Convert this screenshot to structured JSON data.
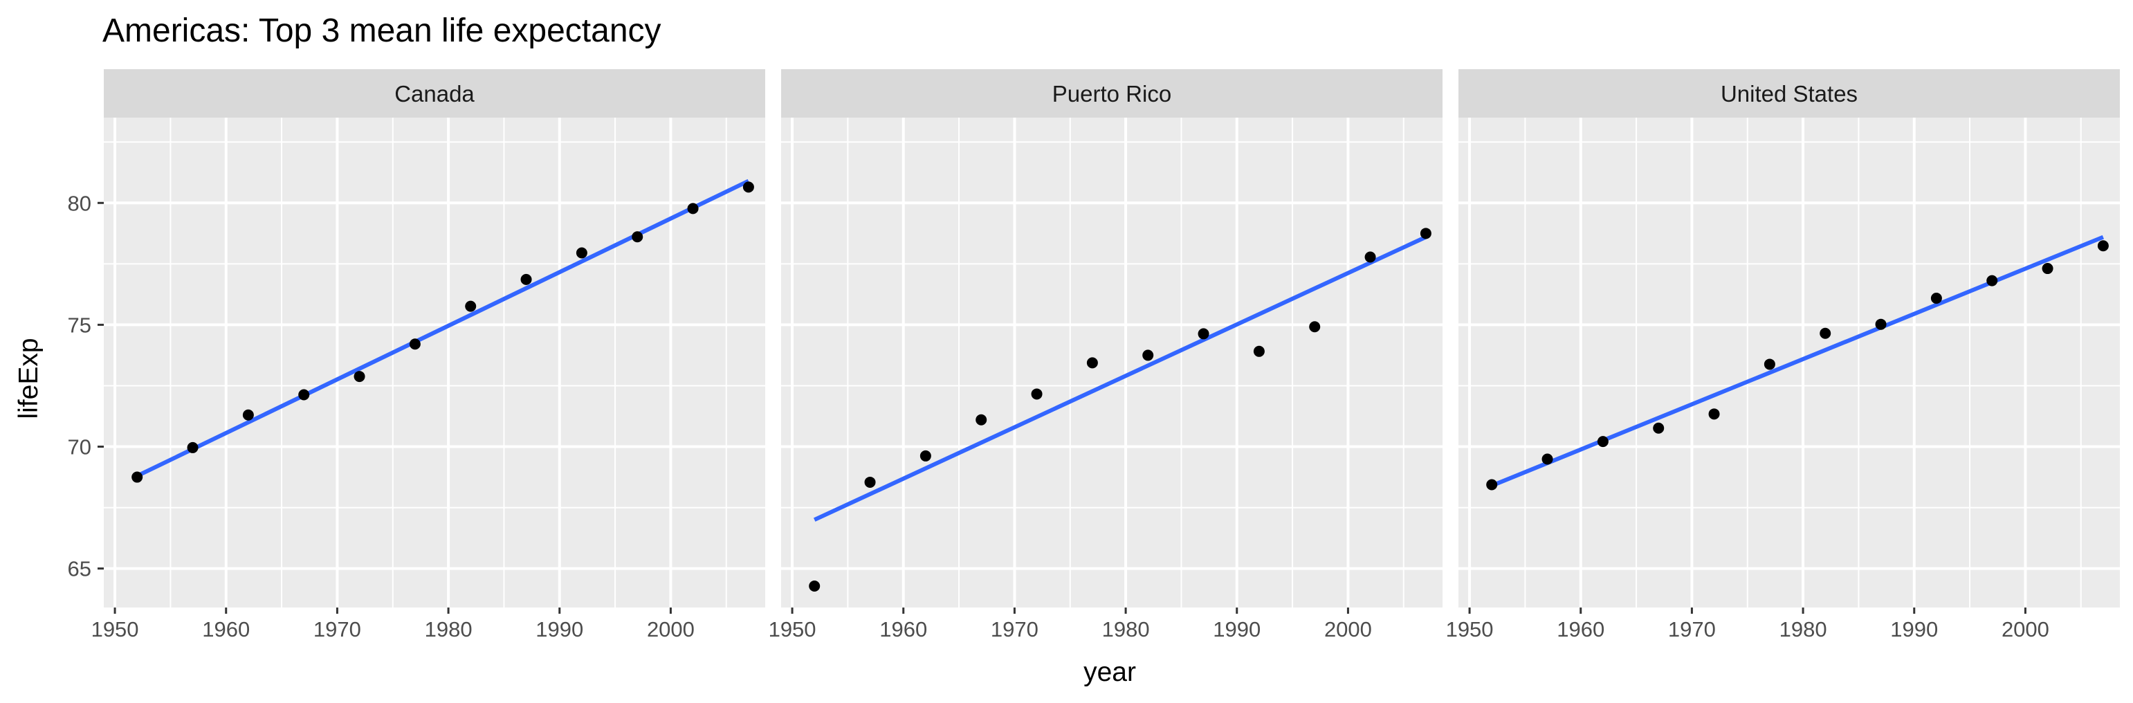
{
  "chart_data": {
    "type": "scatter",
    "title": "Americas: Top 3 mean life expectancy",
    "xlabel": "year",
    "ylabel": "lifeExp",
    "xlim": [
      1949,
      2008.5
    ],
    "ylim": [
      63.4,
      83.5
    ],
    "x_ticks": [
      1950,
      1960,
      1970,
      1980,
      1990,
      2000
    ],
    "y_ticks": [
      65,
      70,
      75,
      80
    ],
    "grid": true,
    "colors": {
      "panel_bg": "#ebebeb",
      "strip_bg": "#d9d9d9",
      "grid": "#ffffff",
      "points": "#000000",
      "fit_line": "#3366ff"
    },
    "x": [
      1952,
      1957,
      1962,
      1967,
      1972,
      1977,
      1982,
      1987,
      1992,
      1997,
      2002,
      2007
    ],
    "facets": [
      {
        "name": "Canada",
        "values": [
          68.75,
          69.96,
          71.3,
          72.13,
          72.88,
          74.21,
          75.76,
          76.86,
          77.95,
          78.61,
          79.77,
          80.65
        ],
        "fit": [
          [
            1952,
            68.8
          ],
          [
            2007,
            80.9
          ]
        ]
      },
      {
        "name": "Puerto Rico",
        "values": [
          64.28,
          68.54,
          69.62,
          71.1,
          72.16,
          73.44,
          73.75,
          74.63,
          73.91,
          74.92,
          77.78,
          78.75
        ],
        "fit": [
          [
            1952,
            67.0
          ],
          [
            2007,
            78.6
          ]
        ]
      },
      {
        "name": "United States",
        "values": [
          68.44,
          69.49,
          70.21,
          70.76,
          71.34,
          73.38,
          74.65,
          75.02,
          76.09,
          76.81,
          77.31,
          78.24
        ],
        "fit": [
          [
            1952,
            68.4
          ],
          [
            2007,
            78.6
          ]
        ]
      }
    ]
  }
}
